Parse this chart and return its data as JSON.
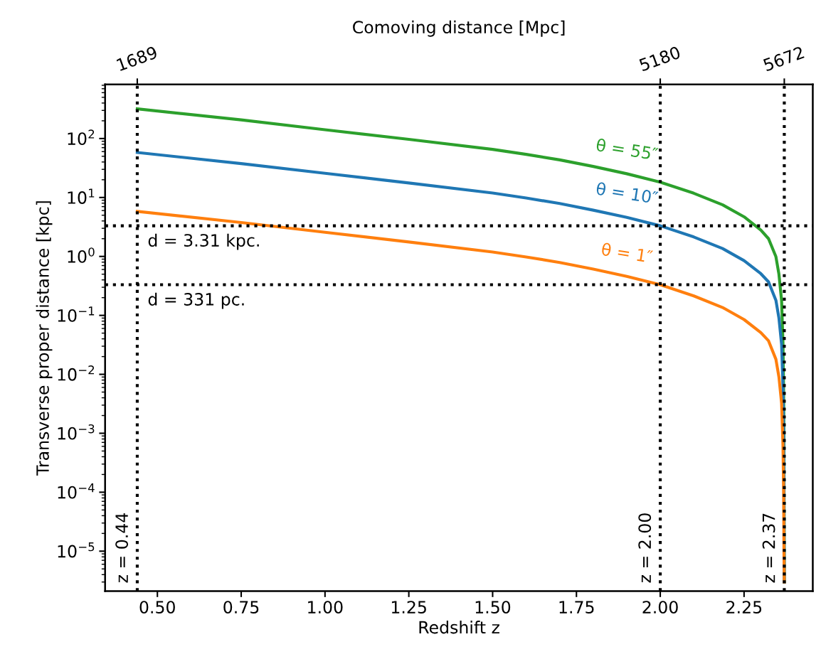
{
  "chart_data": {
    "type": "line",
    "xlabel": "Redshift z",
    "ylabel": "Transverse proper distance [kpc]",
    "x2label": "Comoving distance [Mpc]",
    "log": "y",
    "xlim": [
      0.344,
      2.455
    ],
    "xticks": [
      {
        "value": 0.5,
        "label": "0.50"
      },
      {
        "value": 0.75,
        "label": "0.75"
      },
      {
        "value": 1.0,
        "label": "1.00"
      },
      {
        "value": 1.25,
        "label": "1.25"
      },
      {
        "value": 1.5,
        "label": "1.50"
      },
      {
        "value": 1.75,
        "label": "1.75"
      },
      {
        "value": 2.0,
        "label": "2.00"
      },
      {
        "value": 2.25,
        "label": "2.25"
      }
    ],
    "ylim": [
      2.1e-06,
      830
    ],
    "yticks": [
      {
        "value": 1e-05,
        "label": "10$^{−5}$"
      },
      {
        "value": 0.0001,
        "label": "10$^{−4}$"
      },
      {
        "value": 0.001,
        "label": "10$^{−3}$"
      },
      {
        "value": 0.01,
        "label": "10$^{−2}$"
      },
      {
        "value": 0.1,
        "label": "10$^{−1}$"
      },
      {
        "value": 1,
        "label": "10$^{0}$"
      },
      {
        "value": 10,
        "label": "10$^{1}$"
      },
      {
        "value": 100,
        "label": "10$^{2}$"
      }
    ],
    "annotations": [
      {
        "text": "1689",
        "x": 0.44
      },
      {
        "text": "5180",
        "x": 2.0
      },
      {
        "text": "5672",
        "x": 2.37
      }
    ],
    "x": [
      0.44,
      0.75,
      1.0,
      1.25,
      1.5,
      1.6,
      1.7,
      1.8,
      1.9,
      2.0,
      2.1,
      2.186,
      2.25,
      2.3,
      2.323,
      2.345,
      2.354,
      2.362,
      2.366,
      2.368,
      2.369,
      2.37
    ],
    "series": [
      {
        "name": "θ = 55″",
        "color": "#2ca02c",
        "values": [
          319,
          207,
          141,
          97,
          65.5,
          53.9,
          43.5,
          33.6,
          25.3,
          18.2,
          11.8,
          7.5,
          4.7,
          2.8,
          2.0,
          0.99,
          0.5,
          0.176,
          0.035,
          0.0055,
          0.00055,
          3e-06
        ]
      },
      {
        "name": "θ = 10″",
        "color": "#1f77b4",
        "values": [
          58,
          37.6,
          25.7,
          17.6,
          11.9,
          9.8,
          7.9,
          6.1,
          4.6,
          3.31,
          2.14,
          1.36,
          0.85,
          0.51,
          0.37,
          0.18,
          0.09,
          0.032,
          0.0063,
          0.001,
          0.0001,
          3e-06
        ]
      },
      {
        "name": "θ = 1″",
        "color": "#ff7f0e",
        "values": [
          5.8,
          3.76,
          2.57,
          1.76,
          1.19,
          0.98,
          0.79,
          0.61,
          0.46,
          0.331,
          0.214,
          0.136,
          0.085,
          0.051,
          0.037,
          0.018,
          0.009,
          0.0032,
          0.00063,
          0.0001,
          1e-05,
          3e-06
        ]
      }
    ],
    "ref_lines": [
      {
        "axis": "x",
        "value": 0.44,
        "label": "z = 0.44",
        "color": "#000000",
        "line_style": "dotted"
      },
      {
        "axis": "x",
        "value": 2.0,
        "label": "z = 2.00",
        "color": "#000000",
        "line_style": "dotted"
      },
      {
        "axis": "x",
        "value": 2.37,
        "label": "z = 2.37",
        "color": "#000000",
        "line_style": "dotted"
      },
      {
        "axis": "y",
        "value": 3.31,
        "label": "d = 3.31 kpc.",
        "color": "#000000",
        "line_style": "dotted"
      },
      {
        "axis": "y",
        "value": 0.331,
        "label": "d = 331 pc.",
        "color": "#000000",
        "line_style": "dotted"
      }
    ],
    "grid": false,
    "legend": false,
    "marker": "none",
    "line_style": "solid"
  }
}
